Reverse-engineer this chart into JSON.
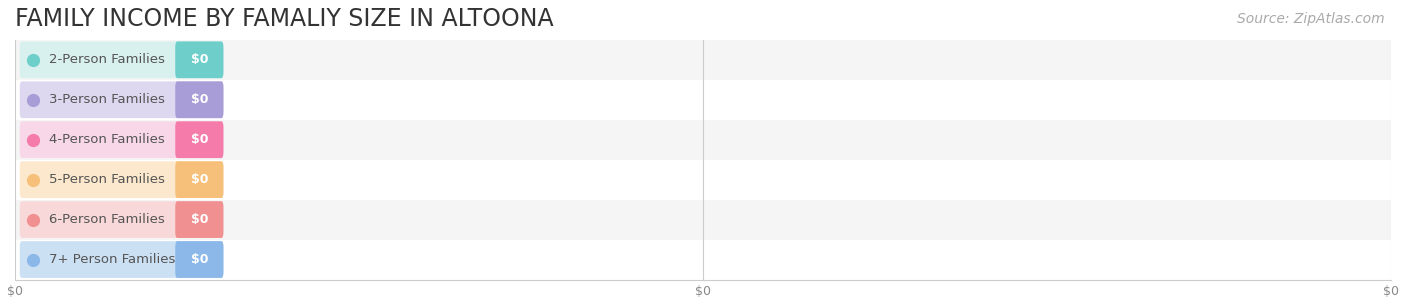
{
  "title": "FAMILY INCOME BY FAMALIY SIZE IN ALTOONA",
  "source": "Source: ZipAtlas.com",
  "categories": [
    "2-Person Families",
    "3-Person Families",
    "4-Person Families",
    "5-Person Families",
    "6-Person Families",
    "7+ Person Families"
  ],
  "values": [
    0,
    0,
    0,
    0,
    0,
    0
  ],
  "bar_colors": [
    "#6ECFCA",
    "#A89DD6",
    "#F47BAA",
    "#F7C07A",
    "#F09090",
    "#8BB8E8"
  ],
  "bar_bg_colors": [
    "#D8F0EE",
    "#DDD8F0",
    "#F8D8E8",
    "#FCE8CC",
    "#F8D8D8",
    "#CCE0F4"
  ],
  "dot_colors": [
    "#6ECFCA",
    "#A89DD6",
    "#F47BAA",
    "#F7C07A",
    "#F09090",
    "#8BB8E8"
  ],
  "label_color": "#555555",
  "value_label_color": "#ffffff",
  "background_color": "#ffffff",
  "row_bg_colors": [
    "#f5f5f5",
    "#ffffff"
  ],
  "xlim": [
    0,
    100
  ],
  "xtick_positions": [
    0,
    50,
    100
  ],
  "xtick_labels": [
    "$0",
    "$0",
    "$0"
  ],
  "title_fontsize": 17,
  "source_fontsize": 10,
  "bar_label_fontsize": 9.5,
  "value_fontsize": 9
}
